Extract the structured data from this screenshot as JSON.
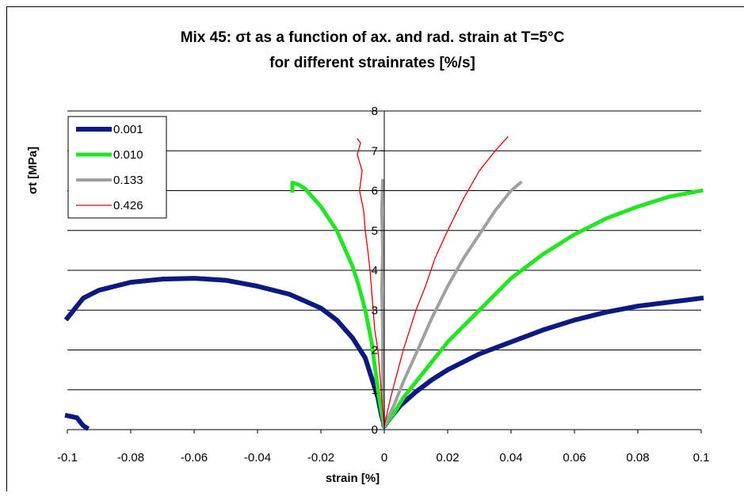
{
  "chart_data": {
    "type": "line",
    "title_line1": "Mix 45: σt as a function of ax. and rad. strain at T=5°C",
    "title_line2": "for different strainrates [%/s]",
    "xlabel": "strain [%]",
    "ylabel": "σt [MPa]",
    "xlim": [
      -0.1,
      0.1
    ],
    "ylim": [
      0,
      8
    ],
    "x_ticks": [
      -0.1,
      -0.08,
      -0.06,
      -0.04,
      -0.02,
      0,
      0.02,
      0.04,
      0.06,
      0.08,
      0.1
    ],
    "x_tick_labels": [
      "-0.1",
      "-0.08",
      "-0.06",
      "-0.04",
      "-0.02",
      "0",
      "0.02",
      "0.04",
      "0.06",
      "0.08",
      "0.1"
    ],
    "y_ticks": [
      0,
      1,
      2,
      3,
      4,
      5,
      6,
      7,
      8
    ],
    "y_tick_labels": [
      "0",
      "1",
      "2",
      "3",
      "4",
      "5",
      "6",
      "7",
      "8"
    ],
    "grid": "horizontal",
    "legend_position": "top-left",
    "series": [
      {
        "name": "0.001",
        "color": "#0b1980",
        "segments": [
          [
            [
              -0.1,
              0.35
            ],
            [
              -0.097,
              0.3
            ],
            [
              -0.095,
              0.1
            ],
            [
              -0.094,
              0.05
            ]
          ],
          [
            [
              -0.1,
              2.8
            ],
            [
              -0.095,
              3.3
            ],
            [
              -0.09,
              3.5
            ],
            [
              -0.085,
              3.6
            ],
            [
              -0.08,
              3.7
            ],
            [
              -0.07,
              3.78
            ],
            [
              -0.06,
              3.8
            ],
            [
              -0.05,
              3.75
            ],
            [
              -0.04,
              3.6
            ],
            [
              -0.03,
              3.4
            ],
            [
              -0.02,
              3.05
            ],
            [
              -0.015,
              2.75
            ],
            [
              -0.01,
              2.3
            ],
            [
              -0.006,
              1.8
            ],
            [
              -0.004,
              1.3
            ],
            [
              -0.002,
              0.8
            ],
            [
              -0.001,
              0.4
            ],
            [
              0,
              0.1
            ]
          ],
          [
            [
              0,
              0.1
            ],
            [
              0.002,
              0.3
            ],
            [
              0.005,
              0.6
            ],
            [
              0.01,
              0.95
            ],
            [
              0.015,
              1.25
            ],
            [
              0.02,
              1.5
            ],
            [
              0.03,
              1.9
            ],
            [
              0.04,
              2.2
            ],
            [
              0.05,
              2.5
            ],
            [
              0.06,
              2.75
            ],
            [
              0.07,
              2.95
            ],
            [
              0.08,
              3.1
            ],
            [
              0.09,
              3.2
            ],
            [
              0.1,
              3.3
            ]
          ]
        ]
      },
      {
        "name": "0.010",
        "color": "#22e622",
        "segments": [
          [
            [
              -0.029,
              6.0
            ],
            [
              -0.029,
              6.2
            ],
            [
              -0.027,
              6.15
            ],
            [
              -0.025,
              6.05
            ],
            [
              -0.02,
              5.6
            ],
            [
              -0.015,
              5.0
            ],
            [
              -0.01,
              4.1
            ],
            [
              -0.008,
              3.6
            ],
            [
              -0.006,
              3.0
            ],
            [
              -0.004,
              2.2
            ],
            [
              -0.003,
              1.6
            ],
            [
              -0.002,
              1.0
            ],
            [
              -0.001,
              0.5
            ],
            [
              0,
              0.1
            ]
          ],
          [
            [
              0,
              0.1
            ],
            [
              0.003,
              0.4
            ],
            [
              0.006,
              0.8
            ],
            [
              0.01,
              1.2
            ],
            [
              0.015,
              1.7
            ],
            [
              0.02,
              2.2
            ],
            [
              0.03,
              3.0
            ],
            [
              0.04,
              3.8
            ],
            [
              0.05,
              4.4
            ],
            [
              0.06,
              4.9
            ],
            [
              0.07,
              5.3
            ],
            [
              0.08,
              5.6
            ],
            [
              0.09,
              5.85
            ],
            [
              0.1,
              6.0
            ]
          ]
        ]
      },
      {
        "name": "0.133",
        "color": "#a0a0a0",
        "segments": [
          [
            [
              -0.0005,
              6.25
            ],
            [
              -0.0008,
              5.5
            ],
            [
              -0.0005,
              4.5
            ],
            [
              -0.0008,
              3.5
            ],
            [
              -0.0005,
              2.5
            ],
            [
              -0.0005,
              1.5
            ],
            [
              -0.0003,
              0.5
            ],
            [
              0,
              0.1
            ]
          ],
          [
            [
              0,
              0.1
            ],
            [
              0.003,
              0.6
            ],
            [
              0.006,
              1.2
            ],
            [
              0.01,
              1.9
            ],
            [
              0.015,
              2.8
            ],
            [
              0.02,
              3.6
            ],
            [
              0.025,
              4.3
            ],
            [
              0.03,
              4.9
            ],
            [
              0.035,
              5.5
            ],
            [
              0.04,
              6.0
            ],
            [
              0.043,
              6.2
            ]
          ]
        ]
      },
      {
        "name": "0.426",
        "color": "#e60000",
        "segments": [
          [
            [
              -0.0085,
              7.3
            ],
            [
              -0.0075,
              7.2
            ],
            [
              -0.0085,
              6.9
            ],
            [
              -0.007,
              6.5
            ],
            [
              -0.0078,
              6.0
            ],
            [
              -0.0065,
              5.5
            ],
            [
              -0.006,
              5.0
            ],
            [
              -0.0052,
              4.5
            ],
            [
              -0.0045,
              4.0
            ],
            [
              -0.004,
              3.5
            ],
            [
              -0.0035,
              3.0
            ],
            [
              -0.003,
              2.5
            ],
            [
              -0.002,
              2.0
            ],
            [
              -0.0015,
              1.5
            ],
            [
              -0.001,
              1.0
            ],
            [
              -0.0005,
              0.5
            ],
            [
              0,
              0.1
            ]
          ],
          [
            [
              0,
              0.1
            ],
            [
              0.002,
              0.8
            ],
            [
              0.004,
              1.4
            ],
            [
              0.006,
              2.0
            ],
            [
              0.008,
              2.5
            ],
            [
              0.01,
              3.0
            ],
            [
              0.013,
              3.6
            ],
            [
              0.016,
              4.3
            ],
            [
              0.02,
              5.0
            ],
            [
              0.025,
              5.8
            ],
            [
              0.03,
              6.5
            ],
            [
              0.035,
              7.0
            ],
            [
              0.039,
              7.35
            ]
          ]
        ]
      }
    ]
  }
}
